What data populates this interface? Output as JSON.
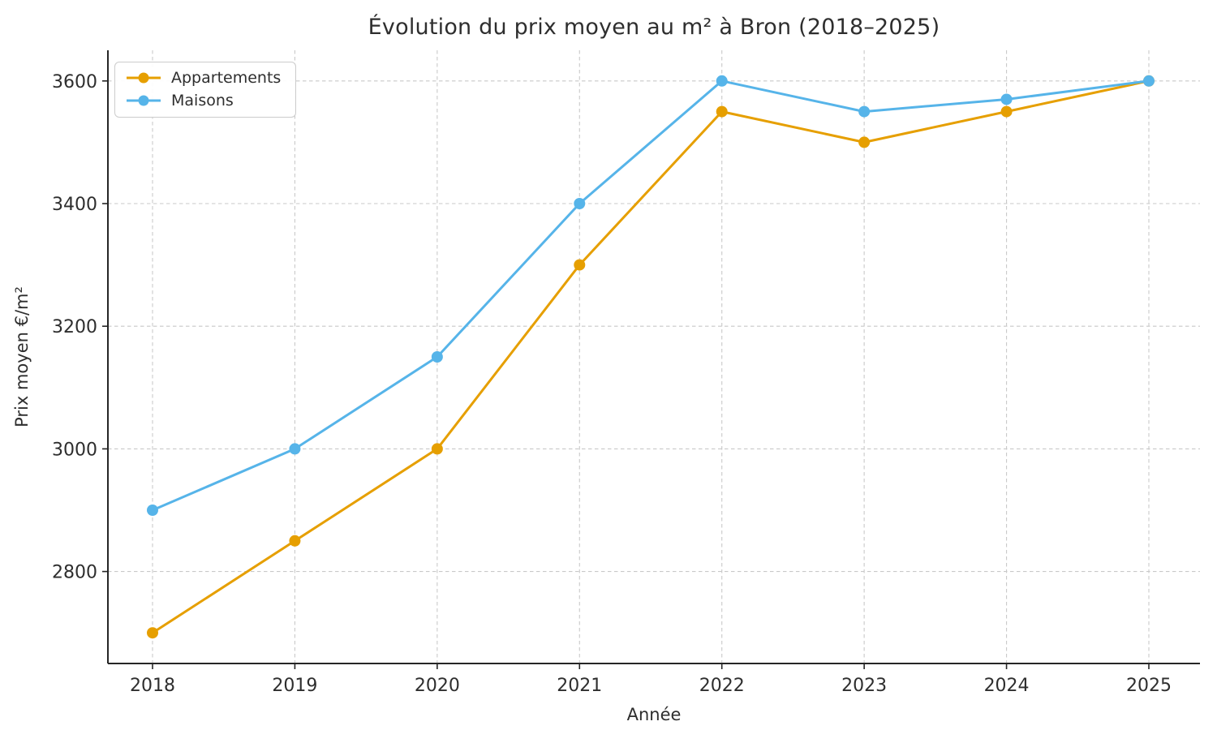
{
  "chart_data": {
    "type": "line",
    "title": "Évolution du prix moyen au m² à Bron (2018–2025)",
    "xlabel": "Année",
    "ylabel": "Prix moyen €/m²",
    "categories": [
      "2018",
      "2019",
      "2020",
      "2021",
      "2022",
      "2023",
      "2024",
      "2025"
    ],
    "series": [
      {
        "name": "Appartements",
        "color": "#E69F00",
        "values": [
          2700,
          2850,
          3000,
          3300,
          3550,
          3500,
          3550,
          3600
        ]
      },
      {
        "name": "Maisons",
        "color": "#56B4E9",
        "values": [
          2900,
          3000,
          3150,
          3400,
          3600,
          3550,
          3570,
          3600
        ]
      }
    ],
    "yticks": [
      2800,
      3000,
      3200,
      3400,
      3600
    ],
    "ylim": [
      2650,
      3650
    ],
    "grid": true,
    "grid_style": "dashed",
    "grid_color": "#c9c9c9",
    "spine_color": "#262626",
    "text_color": "#2e2e2e",
    "legend_position": "upper left"
  }
}
